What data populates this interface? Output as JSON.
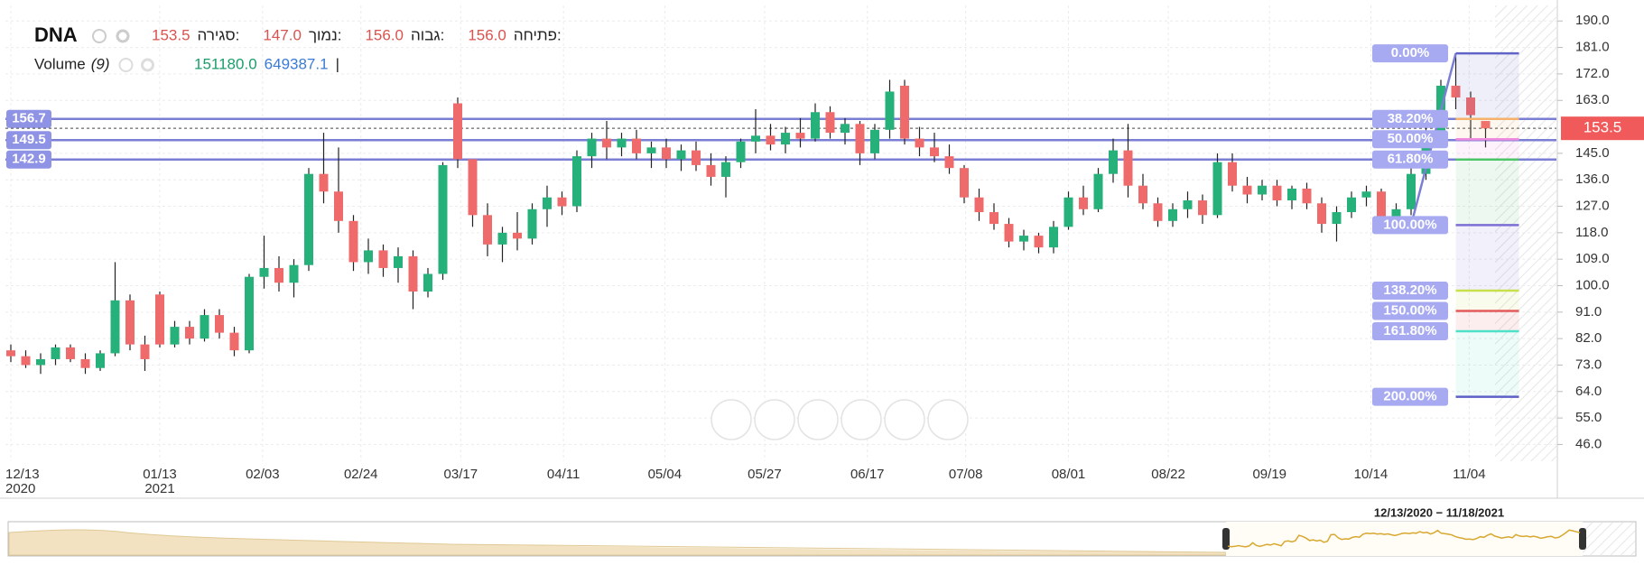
{
  "chart_data": {
    "type": "candlestick",
    "symbol": "DNA",
    "fields": [
      {
        "name": "סגירה:",
        "value": 153.5
      },
      {
        "name": "נמוך:",
        "value": 147,
        "value_label": "147.0"
      },
      {
        "name": "גבוה:",
        "value": 156,
        "value_label": "156.0"
      },
      {
        "name": "פתיחה:",
        "value": 156,
        "value_label": "156.0"
      }
    ],
    "volume": {
      "name": "Volume",
      "period": "(9)",
      "values": [
        {
          "value": 151180,
          "label": "151180.0",
          "color": "#1a9e6a"
        },
        {
          "value": 649387.1,
          "label": "649387.1",
          "color": "#3a7bd5"
        }
      ],
      "separator": "|"
    },
    "up_color": "#26b07a",
    "down_color": "#ef6b6b",
    "ohlc": [
      [
        78,
        80,
        74,
        76
      ],
      [
        76,
        78,
        72,
        73
      ],
      [
        73,
        77,
        70,
        75
      ],
      [
        75,
        80,
        73,
        79
      ],
      [
        79,
        80,
        74,
        75
      ],
      [
        75,
        77,
        70,
        72
      ],
      [
        72,
        78,
        71,
        77
      ],
      [
        77,
        108,
        76,
        95
      ],
      [
        95,
        97,
        78,
        80
      ],
      [
        80,
        83,
        71,
        75
      ],
      [
        97,
        98,
        79,
        80
      ],
      [
        80,
        88,
        79,
        86
      ],
      [
        86,
        88,
        80,
        82
      ],
      [
        82,
        92,
        81,
        90
      ],
      [
        90,
        92,
        82,
        84
      ],
      [
        84,
        86,
        76,
        78
      ],
      [
        78,
        104,
        77,
        103
      ],
      [
        103,
        117,
        99,
        106
      ],
      [
        106,
        110,
        98,
        101
      ],
      [
        101,
        109,
        96,
        107
      ],
      [
        107,
        140,
        105,
        138
      ],
      [
        138,
        152,
        128,
        132
      ],
      [
        132,
        147,
        118,
        122
      ],
      [
        122,
        124,
        105,
        108
      ],
      [
        108,
        116,
        104,
        112
      ],
      [
        112,
        114,
        103,
        106
      ],
      [
        106,
        113,
        101,
        110
      ],
      [
        110,
        112,
        92,
        98
      ],
      [
        98,
        106,
        96,
        104
      ],
      [
        104,
        142,
        102,
        141
      ],
      [
        162,
        164,
        140,
        143
      ],
      [
        143,
        143,
        120,
        124
      ],
      [
        124,
        128,
        110,
        114
      ],
      [
        114,
        120,
        108,
        118
      ],
      [
        118,
        125,
        112,
        116
      ],
      [
        116,
        128,
        114,
        126
      ],
      [
        126,
        134,
        120,
        130
      ],
      [
        130,
        132,
        124,
        127
      ],
      [
        127,
        146,
        125,
        144
      ],
      [
        144,
        152,
        140,
        150
      ],
      [
        150,
        156,
        143,
        147
      ],
      [
        147,
        152,
        144,
        150
      ],
      [
        150,
        153,
        143,
        145
      ],
      [
        145,
        149,
        140,
        147
      ],
      [
        147,
        150,
        140,
        143
      ],
      [
        143,
        148,
        139,
        146
      ],
      [
        146,
        149,
        139,
        141
      ],
      [
        141,
        145,
        134,
        137
      ],
      [
        137,
        144,
        130,
        142
      ],
      [
        142,
        150,
        140,
        149
      ],
      [
        149,
        160,
        145,
        151
      ],
      [
        151,
        155,
        146,
        148
      ],
      [
        148,
        154,
        145,
        152
      ],
      [
        152,
        157,
        147,
        150
      ],
      [
        150,
        162,
        149,
        159
      ],
      [
        159,
        161,
        150,
        152
      ],
      [
        152,
        157,
        148,
        155
      ],
      [
        155,
        156,
        141,
        145
      ],
      [
        145,
        155,
        143,
        153
      ],
      [
        153,
        170,
        150,
        166
      ],
      [
        168,
        170,
        148,
        150
      ],
      [
        150,
        154,
        144,
        147
      ],
      [
        147,
        152,
        142,
        144
      ],
      [
        144,
        148,
        138,
        140
      ],
      [
        140,
        141,
        128,
        130
      ],
      [
        130,
        133,
        122,
        125
      ],
      [
        125,
        128,
        119,
        121
      ],
      [
        121,
        123,
        113,
        115
      ],
      [
        115,
        119,
        112,
        117
      ],
      [
        117,
        118,
        111,
        113
      ],
      [
        113,
        122,
        111,
        120
      ],
      [
        120,
        132,
        119,
        130
      ],
      [
        130,
        134,
        124,
        126
      ],
      [
        126,
        140,
        125,
        138
      ],
      [
        138,
        150,
        135,
        146
      ],
      [
        146,
        155,
        130,
        134
      ],
      [
        134,
        138,
        126,
        128
      ],
      [
        128,
        130,
        120,
        122
      ],
      [
        122,
        128,
        120,
        126
      ],
      [
        126,
        132,
        123,
        129
      ],
      [
        129,
        131,
        121,
        124
      ],
      [
        124,
        145,
        123,
        142
      ],
      [
        142,
        145,
        132,
        134
      ],
      [
        134,
        137,
        128,
        131
      ],
      [
        131,
        136,
        129,
        134
      ],
      [
        134,
        136,
        127,
        129
      ],
      [
        129,
        134,
        126,
        133
      ],
      [
        133,
        135,
        126,
        128
      ],
      [
        128,
        130,
        118,
        121
      ],
      [
        121,
        127,
        115,
        125
      ],
      [
        125,
        132,
        123,
        130
      ],
      [
        130,
        134,
        127,
        132
      ],
      [
        132,
        133,
        121,
        123
      ],
      [
        123,
        128,
        120,
        126
      ],
      [
        126,
        140,
        124,
        138
      ],
      [
        138,
        155,
        136,
        152
      ],
      [
        152,
        170,
        148,
        168
      ],
      [
        168,
        179,
        160,
        164
      ],
      [
        164,
        166,
        150,
        158
      ],
      [
        156,
        156,
        147,
        153.5
      ]
    ],
    "ylim": [
      40.3,
      195.3
    ],
    "yticks": [
      {
        "value": 190,
        "label": "190.0"
      },
      {
        "value": 181,
        "label": "181.0"
      },
      {
        "value": 172,
        "label": "172.0"
      },
      {
        "value": 163,
        "label": "163.0"
      },
      {
        "value": 145,
        "label": "145.0"
      },
      {
        "value": 136,
        "label": "136.0"
      },
      {
        "value": 127,
        "label": "127.0"
      },
      {
        "value": 118,
        "label": "118.0"
      },
      {
        "value": 109,
        "label": "109.0"
      },
      {
        "value": 100,
        "label": "100.0"
      },
      {
        "value": 91,
        "label": "91.0"
      },
      {
        "value": 82,
        "label": "82.0"
      },
      {
        "value": 73,
        "label": "73.0"
      },
      {
        "value": 64,
        "label": "64.0"
      },
      {
        "value": 55,
        "label": "55.0"
      },
      {
        "value": 46,
        "label": "46.0"
      }
    ],
    "xticks": [
      {
        "value": 0,
        "label": "12/13"
      },
      {
        "value": 10,
        "label": "01/13"
      },
      {
        "value": 16.9,
        "label": "02/03"
      },
      {
        "value": 23.5,
        "label": "02/24"
      },
      {
        "value": 30.2,
        "label": "03/17"
      },
      {
        "value": 37.1,
        "label": "04/11"
      },
      {
        "value": 43.9,
        "label": "05/04"
      },
      {
        "value": 50.6,
        "label": "05/27"
      },
      {
        "value": 57.5,
        "label": "06/17"
      },
      {
        "value": 64.1,
        "label": "07/08"
      },
      {
        "value": 71,
        "label": "08/01"
      },
      {
        "value": 77.7,
        "label": "08/22"
      },
      {
        "value": 84.5,
        "label": "09/19"
      },
      {
        "value": 91.3,
        "label": "10/14"
      },
      {
        "value": 97.9,
        "label": "11/04"
      }
    ],
    "x_year_labels": [
      {
        "value": 0,
        "label": "2020"
      },
      {
        "value": 10,
        "label": "2021"
      }
    ],
    "grid": true,
    "hlines": [
      156.7,
      149.5,
      142.9
    ],
    "hline_color": "#7b7fd4",
    "last_price": 153.5,
    "last_price_color": "#f05a5a",
    "fib": {
      "high": 179,
      "low": 120.6,
      "high_index": 97,
      "low_index": 94,
      "line_color": "#7b7fd4",
      "levels": [
        {
          "ratio": 0,
          "label": "0.00%",
          "color": "#6064c8"
        },
        {
          "ratio": 38.2,
          "label": "38.20%",
          "color": "#f5b26b"
        },
        {
          "ratio": 50,
          "label": "50.00%",
          "color": "#f28be0"
        },
        {
          "ratio": 61.8,
          "label": "61.80%",
          "color": "#4cc46a"
        },
        {
          "ratio": 100,
          "label": "100.00%",
          "color": "#7b6fd4"
        },
        {
          "ratio": 138.2,
          "label": "138.20%",
          "color": "#c8e04b"
        },
        {
          "ratio": 150,
          "label": "150.00%",
          "color": "#e35b5b"
        },
        {
          "ratio": 161.8,
          "label": "161.80%",
          "color": "#4ee0c8"
        },
        {
          "ratio": 200,
          "label": "200.00%",
          "color": "#5b5fc7"
        }
      ]
    },
    "navigator_label": "12/13/2020 − 11/18/2021"
  }
}
